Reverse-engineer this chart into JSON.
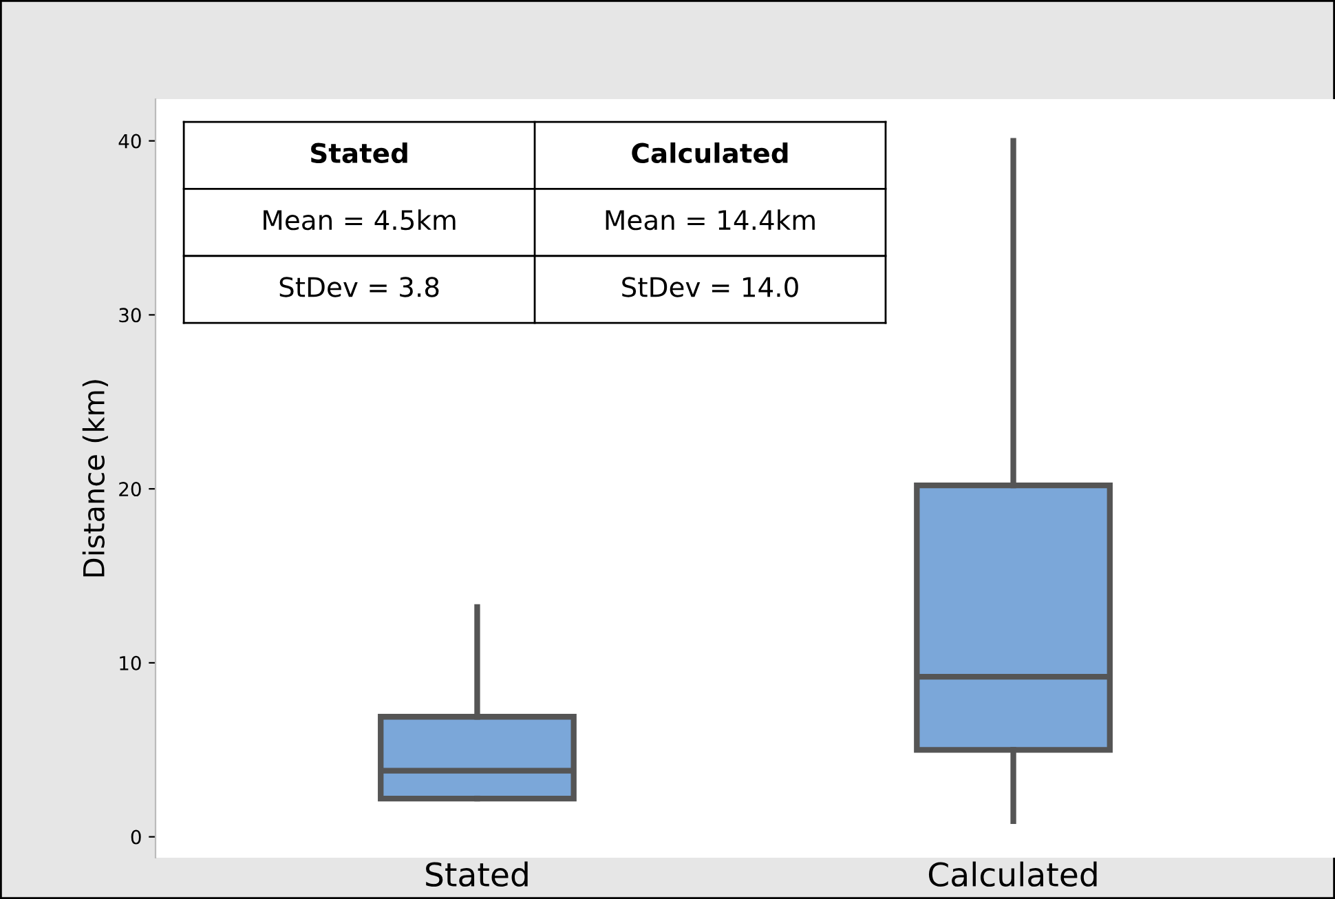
{
  "chart_data": {
    "type": "box",
    "ylabel": "Distance (km)",
    "categories": [
      "Stated",
      "Calculated"
    ],
    "boxes": [
      {
        "low": 2.2,
        "q1": 2.2,
        "median": 3.8,
        "q3": 6.9,
        "high": 13.2
      },
      {
        "low": 0.9,
        "q1": 5.0,
        "median": 9.2,
        "q3": 20.2,
        "high": 40.0
      }
    ],
    "color": "#7ba7d9",
    "ylim": [
      -1.2,
      42.4
    ],
    "yticks": [
      0,
      10,
      20,
      30,
      40
    ],
    "grid": false,
    "legend": false,
    "annotations": [
      "Stated",
      "Calculated",
      "Mean = 4.5km",
      "Mean = 14.4km",
      "StDev = 3.8",
      "StDev = 14.0"
    ]
  }
}
